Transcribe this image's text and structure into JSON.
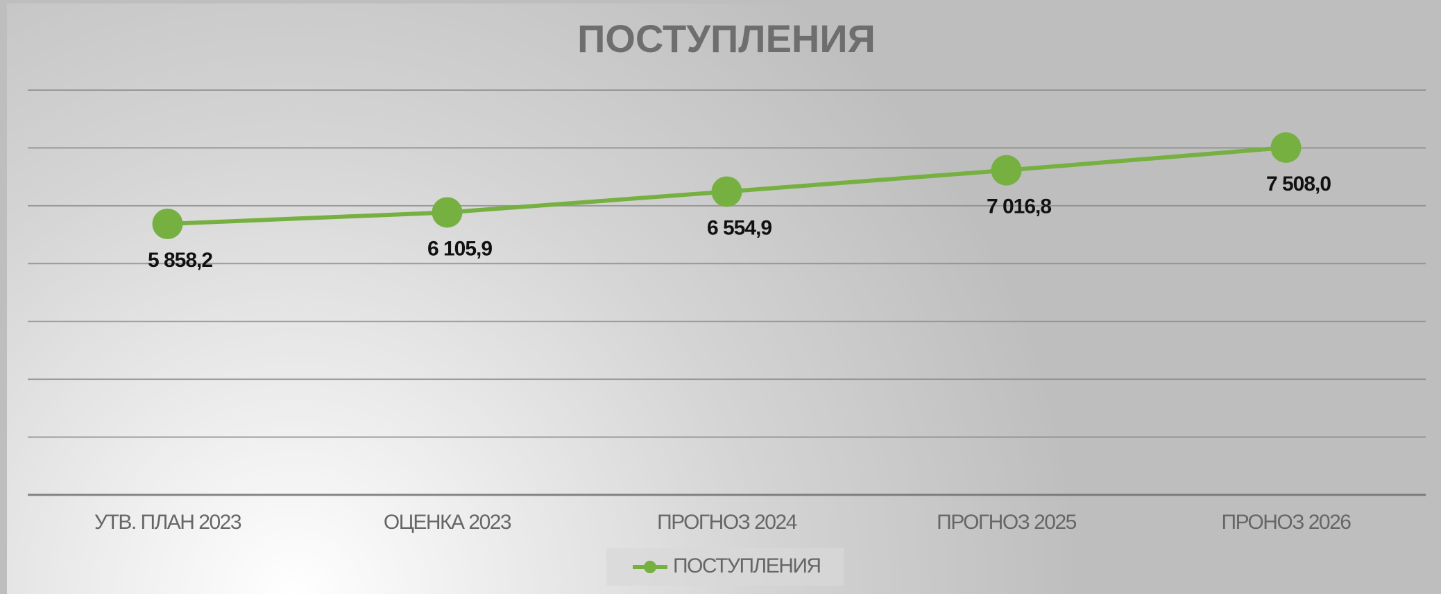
{
  "chart_data": {
    "type": "line",
    "title": "ПОСТУПЛЕНИЯ",
    "categories": [
      "УТВ. ПЛАН 2023",
      "ОЦЕНКА 2023",
      "ПРОГНОЗ 2024",
      "ПРОГНОЗ 2025",
      "ПРОНОЗ 2026"
    ],
    "series": [
      {
        "name": "ПОСТУПЛЕНИЯ",
        "color": "#76b041",
        "values": [
          5858.2,
          6105.9,
          6554.9,
          7016.8,
          7508.0
        ],
        "value_labels": [
          "5 858,2",
          "6 105,9",
          "6 554,9",
          "7 016,8",
          "7 508,0"
        ]
      }
    ],
    "ylim": [
      0,
      8750
    ],
    "yticks": [
      0,
      1250,
      2500,
      3750,
      5000,
      6250,
      7500,
      8750
    ],
    "grid": true,
    "legend": "bottom"
  }
}
